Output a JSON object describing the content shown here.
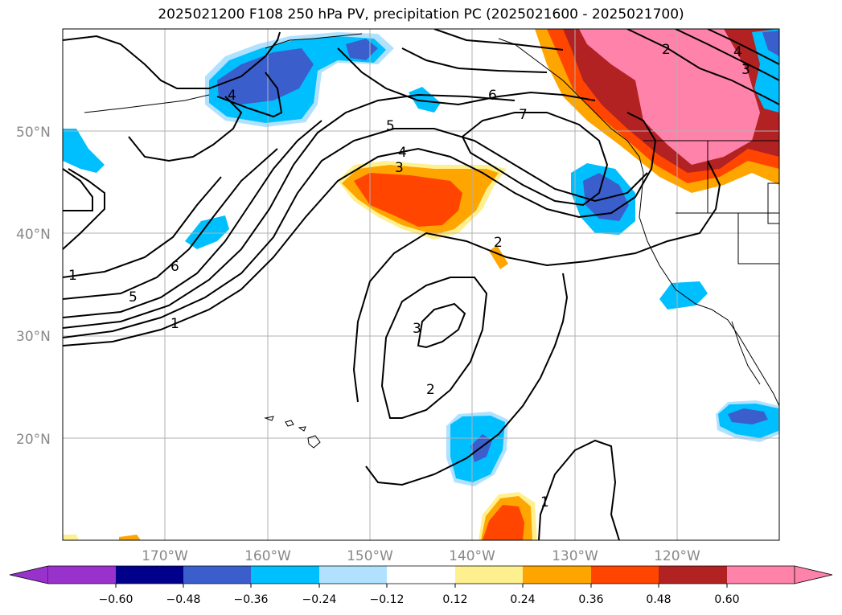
{
  "title": "2025021200 F108 250 hPa PV, precipitation PC (2025021600 - 2025021700)",
  "map": {
    "lat_ticks": [
      "50°N",
      "40°N",
      "30°N",
      "20°N"
    ],
    "lon_ticks": [
      "170°W",
      "160°W",
      "150°W",
      "140°W",
      "130°W",
      "120°W"
    ],
    "pv_contour_labels": [
      "4",
      "5",
      "4",
      "3",
      "6",
      "7",
      "2",
      "4",
      "3",
      "6",
      "5",
      "1",
      "3",
      "2",
      "1",
      "2",
      "1"
    ]
  },
  "colorbar": {
    "ticks": [
      "−0.60",
      "−0.48",
      "−0.36",
      "−0.24",
      "−0.12",
      "0.12",
      "0.24",
      "0.36",
      "0.48",
      "0.60"
    ],
    "colors": [
      "#9932cc",
      "#00008b",
      "#3a5fcd",
      "#00bfff",
      "#b0e2ff",
      "#ffffff",
      "#fff08f",
      "#ffa500",
      "#ff4500",
      "#b22222",
      "#ff82ab"
    ]
  }
}
